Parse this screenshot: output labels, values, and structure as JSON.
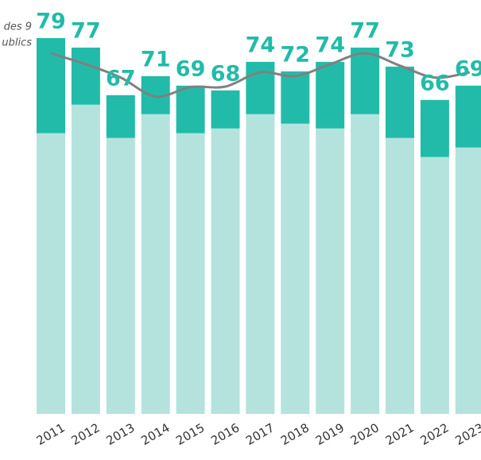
{
  "chart_data": {
    "type": "stacked_bar_line",
    "annotations": [
      "des 9",
      "ublics"
    ],
    "categories": [
      "2011",
      "2012",
      "2013",
      "2014",
      "2015",
      "2016",
      "2017",
      "2018",
      "2019",
      "2020",
      "2021",
      "2022",
      "2023"
    ],
    "series": [
      {
        "color": "#b4e3dd",
        "values": [
          59,
          65,
          58,
          63,
          59,
          60,
          63,
          61,
          60,
          63,
          58,
          54,
          56
        ]
      },
      {
        "color": "#22bba9",
        "values": [
          20,
          12,
          9,
          8,
          10,
          8,
          11,
          11,
          14,
          14,
          15,
          12,
          13
        ]
      },
      {
        "type": "line",
        "color": "#808080",
        "values": [
          75.8,
          73.5,
          70.7,
          66.7,
          68.7,
          68.8,
          71.8,
          71,
          73.5,
          75.8,
          73.2,
          70.7,
          71.8
        ]
      }
    ],
    "totals": [
      79,
      77,
      67,
      71,
      69,
      68,
      74,
      72,
      74,
      77,
      73,
      66,
      69
    ],
    "label_color": "#22bba9",
    "ylim": [
      0,
      87
    ]
  }
}
